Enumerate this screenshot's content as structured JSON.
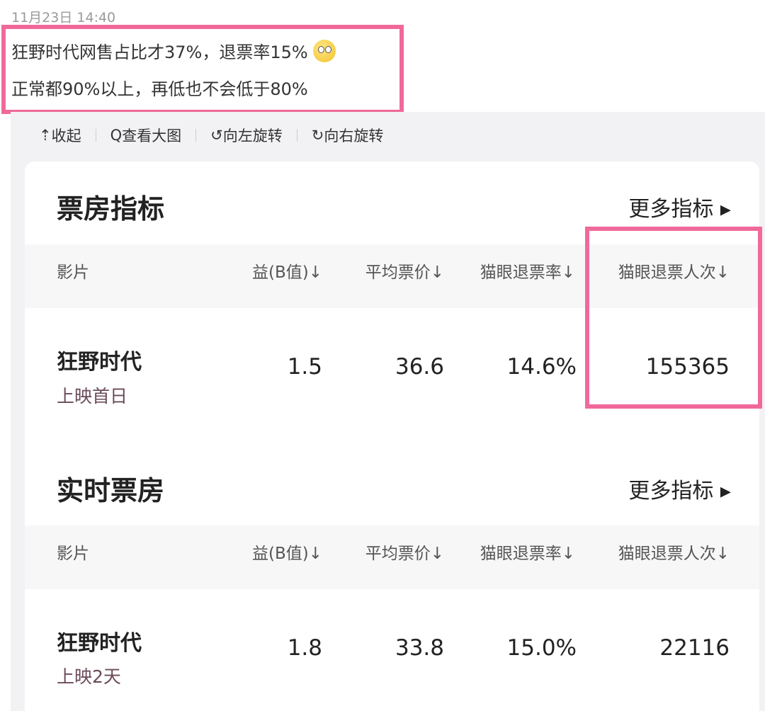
{
  "post": {
    "timestamp": "11月23日 14:40",
    "line1": "狂野时代网售占比才37%，退票率15%",
    "line2": "正常都90%以上，再低也不会低于80%",
    "emoji": "thinking-face-emoji"
  },
  "toolbar": {
    "collapse": "收起",
    "view_large": "查看大图",
    "rotate_left": "向左旋转",
    "rotate_right": "向右旋转"
  },
  "colors": {
    "highlight": "#f0699a"
  },
  "sections": [
    {
      "title": "票房指标",
      "more": "更多指标 ▸",
      "headers": [
        "影片",
        "益(B值)↓",
        "平均票价↓",
        "猫眼退票率↓",
        "猫眼退票人次↓"
      ],
      "row": {
        "film": "狂野时代",
        "sub": "上映首日",
        "values": [
          "1.5",
          "36.6",
          "14.6%",
          "155365"
        ]
      }
    },
    {
      "title": "实时票房",
      "more": "更多指标 ▸",
      "headers": [
        "影片",
        "益(B值)↓",
        "平均票价↓",
        "猫眼退票率↓",
        "猫眼退票人次↓"
      ],
      "row": {
        "film": "狂野时代",
        "sub": "上映2天",
        "values": [
          "1.8",
          "33.8",
          "15.0%",
          "22116"
        ]
      }
    }
  ]
}
